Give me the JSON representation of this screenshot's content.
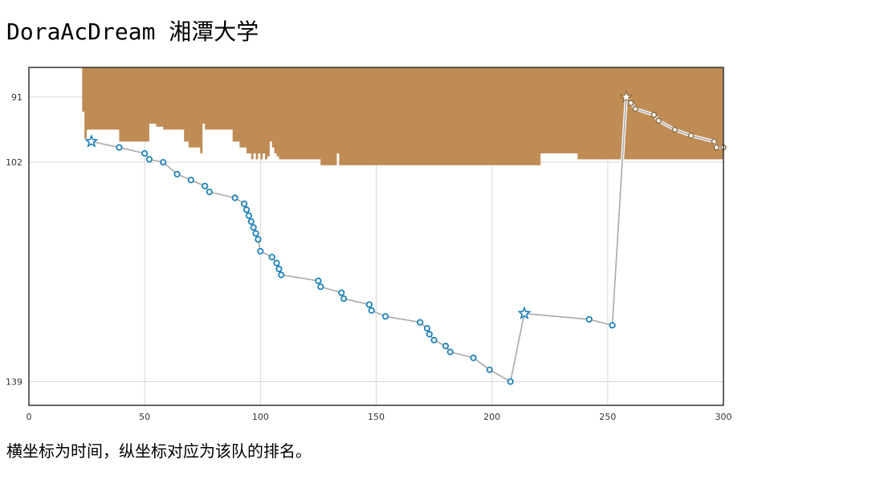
{
  "page": {
    "title": "DoraAcDream 湘潭大学",
    "caption": "横坐标为时间，纵坐标对应为该队的排名。"
  },
  "colors": {
    "area": "#bf8c55",
    "series_before": "#1f82b8",
    "series_after": "#8a6a3e",
    "line": "#a9a9a9",
    "grid": "#d8d8d8",
    "frame": "#333333"
  },
  "chart_data": {
    "type": "line",
    "xlim": [
      0,
      300
    ],
    "ylim": [
      86,
      143
    ],
    "y_inverted": true,
    "x_ticks": [
      0,
      50,
      100,
      150,
      200,
      250,
      300
    ],
    "y_ticks": [
      91,
      102,
      139
    ],
    "grid": true,
    "xlabel": "",
    "ylabel": "",
    "series": [
      {
        "marker": "circle",
        "highlight_marker": "star",
        "points": [
          {
            "x": 27,
            "y": 98.5,
            "marker": "star"
          },
          {
            "x": 39,
            "y": 99.5
          },
          {
            "x": 50,
            "y": 100.5
          },
          {
            "x": 52,
            "y": 101.5
          },
          {
            "x": 58,
            "y": 102
          },
          {
            "x": 64,
            "y": 104
          },
          {
            "x": 70,
            "y": 105
          },
          {
            "x": 76,
            "y": 106
          },
          {
            "x": 78,
            "y": 107
          },
          {
            "x": 89,
            "y": 108
          },
          {
            "x": 93,
            "y": 109
          },
          {
            "x": 94,
            "y": 110
          },
          {
            "x": 95,
            "y": 111
          },
          {
            "x": 96,
            "y": 112
          },
          {
            "x": 97,
            "y": 113
          },
          {
            "x": 98,
            "y": 114
          },
          {
            "x": 99,
            "y": 115
          },
          {
            "x": 100,
            "y": 117
          },
          {
            "x": 105,
            "y": 118
          },
          {
            "x": 107,
            "y": 119
          },
          {
            "x": 108,
            "y": 120
          },
          {
            "x": 109,
            "y": 121
          },
          {
            "x": 125,
            "y": 122
          },
          {
            "x": 126,
            "y": 123
          },
          {
            "x": 135,
            "y": 124
          },
          {
            "x": 136,
            "y": 125
          },
          {
            "x": 147,
            "y": 126
          },
          {
            "x": 148,
            "y": 127
          },
          {
            "x": 154,
            "y": 128
          },
          {
            "x": 169,
            "y": 129
          },
          {
            "x": 172,
            "y": 130
          },
          {
            "x": 173,
            "y": 131
          },
          {
            "x": 175,
            "y": 132
          },
          {
            "x": 180,
            "y": 133
          },
          {
            "x": 182,
            "y": 134
          },
          {
            "x": 192,
            "y": 135
          },
          {
            "x": 199,
            "y": 137
          },
          {
            "x": 208,
            "y": 139
          },
          {
            "x": 214,
            "y": 127.5,
            "marker": "star"
          },
          {
            "x": 242,
            "y": 128.5
          },
          {
            "x": 252,
            "y": 129.5
          },
          {
            "x": 258,
            "y": 91,
            "marker": "star"
          },
          {
            "x": 260,
            "y": 92
          },
          {
            "x": 262,
            "y": 93
          },
          {
            "x": 270,
            "y": 94
          },
          {
            "x": 272,
            "y": 95
          },
          {
            "x": 279,
            "y": 96.5
          },
          {
            "x": 286,
            "y": 97.5
          },
          {
            "x": 296,
            "y": 98.5
          },
          {
            "x": 297,
            "y": 99.5
          },
          {
            "x": 300,
            "y": 99.5
          }
        ]
      }
    ],
    "area": {
      "baseline": 86,
      "x": [
        23,
        24,
        25,
        38,
        39,
        50,
        51,
        52,
        55,
        58,
        62,
        67,
        69,
        73,
        74,
        75,
        76,
        77,
        78,
        87,
        88,
        89,
        90,
        91,
        92,
        93,
        94,
        95,
        96,
        97,
        98,
        99,
        100,
        101,
        102,
        103,
        104,
        105,
        106,
        107,
        108,
        109,
        110,
        111,
        112,
        121,
        123,
        125,
        126,
        131,
        132,
        133,
        134,
        135,
        213,
        221,
        237,
        254,
        260,
        296,
        300
      ],
      "y": [
        93.5,
        98,
        96.5,
        96.5,
        98.5,
        98.5,
        98.5,
        95.5,
        96,
        96.5,
        96.5,
        98.5,
        99.5,
        99.5,
        100.5,
        95.5,
        96.5,
        96.5,
        96.5,
        96.5,
        98.5,
        98.5,
        98.5,
        99.5,
        99.5,
        99.5,
        100.5,
        100.5,
        101.5,
        100.5,
        101.5,
        100.5,
        101.5,
        100.5,
        101.5,
        101,
        98.5,
        99.5,
        100.5,
        101,
        101.5,
        101.5,
        101.5,
        101.5,
        101.5,
        101.5,
        101.5,
        101.5,
        102.5,
        102.5,
        102.5,
        100.5,
        102.5,
        102.5,
        102.5,
        100.5,
        101.5,
        101.5,
        101.5,
        101.5,
        102.5
      ]
    }
  }
}
